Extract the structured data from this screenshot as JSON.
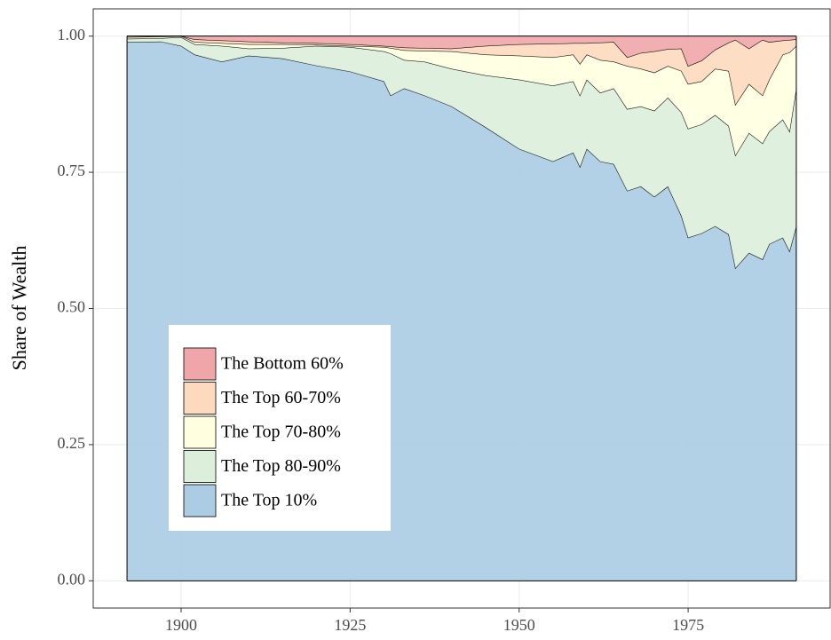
{
  "chart_data": {
    "type": "stacked-area",
    "y_label": "Share of Wealth",
    "x": [
      1892,
      1897,
      1900,
      1902,
      1906,
      1910,
      1915,
      1920,
      1925,
      1930,
      1931,
      1933,
      1936,
      1940,
      1945,
      1950,
      1955,
      1958,
      1959,
      1960,
      1962,
      1964,
      1966,
      1968,
      1970,
      1972,
      1974,
      1975,
      1977,
      1979,
      1981,
      1982,
      1984,
      1986,
      1987,
      1989,
      1990,
      1991
    ],
    "series": [
      {
        "name": "The Top 10%",
        "color": "#abcce3",
        "values": [
          0.989,
          0.99,
          0.982,
          0.966,
          0.953,
          0.964,
          0.959,
          0.946,
          0.935,
          0.917,
          0.891,
          0.904,
          0.891,
          0.871,
          0.833,
          0.793,
          0.77,
          0.786,
          0.76,
          0.793,
          0.77,
          0.765,
          0.716,
          0.724,
          0.705,
          0.724,
          0.67,
          0.63,
          0.638,
          0.651,
          0.636,
          0.574,
          0.602,
          0.59,
          0.618,
          0.63,
          0.605,
          0.651
        ]
      },
      {
        "name": "The Top 80-90%",
        "color": "#dcefda",
        "values": [
          0.006,
          0.006,
          0.016,
          0.019,
          0.029,
          0.013,
          0.019,
          0.036,
          0.045,
          0.055,
          0.077,
          0.052,
          0.062,
          0.069,
          0.095,
          0.127,
          0.139,
          0.131,
          0.131,
          0.127,
          0.126,
          0.139,
          0.15,
          0.147,
          0.158,
          0.163,
          0.19,
          0.2,
          0.2,
          0.204,
          0.199,
          0.207,
          0.22,
          0.213,
          0.207,
          0.217,
          0.22,
          0.253
        ]
      },
      {
        "name": "The Top 70-80%",
        "color": "#ffffe0",
        "values": [
          0.003,
          0.003,
          0.002,
          0.004,
          0.005,
          0.008,
          0.007,
          0.002,
          0.002,
          0.008,
          0.01,
          0.018,
          0.02,
          0.032,
          0.038,
          0.044,
          0.052,
          0.049,
          0.058,
          0.046,
          0.06,
          0.049,
          0.079,
          0.069,
          0.07,
          0.058,
          0.076,
          0.082,
          0.079,
          0.085,
          0.101,
          0.093,
          0.09,
          0.088,
          0.095,
          0.119,
          0.145,
          0.078
        ]
      },
      {
        "name": "The Top 60-70%",
        "color": "#fdd9bd",
        "values": [
          0.002,
          0.001,
          0,
          0.005,
          0.005,
          0.005,
          0.003,
          0.003,
          0.003,
          0.002,
          0.003,
          0.005,
          0.005,
          0.005,
          0.016,
          0.021,
          0.025,
          0.021,
          0.038,
          0.021,
          0.032,
          0.036,
          0.016,
          0.029,
          0.039,
          0.031,
          0.041,
          0.033,
          0.038,
          0.035,
          0.052,
          0.119,
          0.065,
          0.102,
          0.069,
          0.026,
          0.023,
          0.012
        ]
      },
      {
        "name": "The Bottom 60%",
        "color": "#f0a6a8",
        "values": [
          0,
          0,
          0,
          0.006,
          0.008,
          0.01,
          0.012,
          0.013,
          0.015,
          0.018,
          0.019,
          0.021,
          0.022,
          0.023,
          0.018,
          0.015,
          0.014,
          0.013,
          0.013,
          0.013,
          0.012,
          0.011,
          0.039,
          0.031,
          0.028,
          0.024,
          0.023,
          0.055,
          0.045,
          0.025,
          0.012,
          0.007,
          0.023,
          0.007,
          0.011,
          0.008,
          0.007,
          0.006
        ]
      }
    ],
    "xlim": [
      1887,
      1996
    ],
    "ylim": [
      -0.05,
      1.05
    ],
    "xticks": [
      1900,
      1925,
      1950,
      1975
    ],
    "yticks": [
      {
        "value": 0,
        "label": "0.00"
      },
      {
        "value": 0.25,
        "label": "0.25"
      },
      {
        "value": 0.5,
        "label": "0.50"
      },
      {
        "value": 0.75,
        "label": "0.75"
      },
      {
        "value": 1,
        "label": "1.00"
      }
    ],
    "grid": true
  }
}
